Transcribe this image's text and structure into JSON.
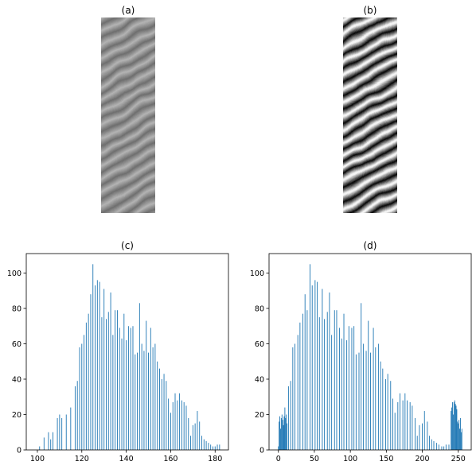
{
  "panels": [
    {
      "id": "a",
      "title": "(a)",
      "kind": "image",
      "description_icon": "grayscale-fingerprint-image"
    },
    {
      "id": "b",
      "title": "(b)",
      "kind": "image",
      "description_icon": "contrast-enhanced-fingerprint-image"
    }
  ],
  "colors": {
    "bar": "#1f77b4",
    "axis": "#000000",
    "background": "#ffffff"
  },
  "chart_data": [
    {
      "type": "bar",
      "title": "(c)",
      "xlabel": "",
      "ylabel": "",
      "xlim": [
        95,
        186
      ],
      "ylim": [
        0,
        111
      ],
      "xticks": [
        100,
        120,
        140,
        160,
        180
      ],
      "yticks": [
        0,
        20,
        40,
        60,
        80,
        100
      ],
      "grid": false,
      "x": [
        101,
        103,
        105,
        106,
        107,
        109,
        110,
        111,
        113,
        115,
        117,
        118,
        119,
        120,
        121,
        122,
        123,
        124,
        125,
        126,
        127,
        128,
        129,
        130,
        131,
        132,
        133,
        134,
        135,
        136,
        137,
        138,
        139,
        140,
        141,
        142,
        143,
        144,
        145,
        146,
        147,
        148,
        149,
        150,
        151,
        152,
        153,
        154,
        155,
        156,
        157,
        158,
        159,
        160,
        161,
        162,
        163,
        164,
        165,
        166,
        167,
        168,
        169,
        170,
        171,
        172,
        173,
        174,
        175,
        176,
        177,
        178,
        179,
        180,
        181,
        182
      ],
      "values": [
        2,
        7,
        10,
        6,
        10,
        18,
        20,
        18,
        20,
        24,
        36,
        39,
        58,
        60,
        65,
        72,
        77,
        88,
        105,
        93,
        96,
        95,
        75,
        91,
        74,
        78,
        89,
        65,
        79,
        79,
        69,
        63,
        77,
        62,
        70,
        69,
        70,
        54,
        55,
        83,
        60,
        56,
        73,
        55,
        69,
        58,
        60,
        50,
        46,
        40,
        43,
        39,
        29,
        21,
        27,
        32,
        28,
        32,
        28,
        27,
        25,
        18,
        8,
        14,
        15,
        22,
        16,
        8,
        6,
        5,
        4,
        3,
        2,
        2,
        3,
        3
      ]
    },
    {
      "type": "bar",
      "title": "(d)",
      "xlabel": "",
      "ylabel": "",
      "xlim": [
        -13,
        268
      ],
      "ylim": [
        0,
        111
      ],
      "xticks": [
        0,
        50,
        100,
        150,
        200,
        250
      ],
      "yticks": [
        0,
        20,
        40,
        60,
        80,
        100
      ],
      "grid": false,
      "x": [
        0,
        1,
        2,
        3,
        4,
        5,
        6,
        7,
        8,
        9,
        10,
        11,
        12,
        14,
        17,
        20,
        23,
        27,
        30,
        34,
        37,
        40,
        44,
        47,
        51,
        54,
        57,
        61,
        64,
        68,
        71,
        74,
        78,
        81,
        85,
        88,
        91,
        95,
        98,
        102,
        105,
        108,
        112,
        115,
        118,
        122,
        125,
        128,
        132,
        135,
        139,
        142,
        145,
        149,
        152,
        156,
        159,
        162,
        166,
        169,
        173,
        176,
        179,
        183,
        186,
        190,
        193,
        196,
        200,
        203,
        207,
        210,
        213,
        216,
        220,
        223,
        227,
        230,
        233,
        237,
        240,
        241,
        242,
        243,
        244,
        245,
        246,
        247,
        248,
        249,
        250,
        251,
        252,
        253,
        254,
        255
      ],
      "values": [
        2,
        16,
        19,
        12,
        18,
        20,
        17,
        14,
        19,
        24,
        18,
        20,
        15,
        36,
        39,
        58,
        60,
        65,
        72,
        77,
        88,
        79,
        105,
        93,
        96,
        95,
        75,
        91,
        74,
        78,
        89,
        65,
        79,
        79,
        69,
        63,
        77,
        62,
        70,
        69,
        70,
        54,
        55,
        83,
        60,
        56,
        73,
        55,
        69,
        58,
        60,
        50,
        46,
        40,
        43,
        39,
        29,
        21,
        27,
        32,
        28,
        32,
        28,
        27,
        25,
        18,
        8,
        14,
        15,
        22,
        16,
        8,
        6,
        5,
        4,
        3,
        2,
        2,
        3,
        3,
        22,
        24,
        27,
        20,
        27,
        28,
        26,
        25,
        23,
        16,
        15,
        17,
        12,
        18,
        10,
        12
      ]
    }
  ]
}
